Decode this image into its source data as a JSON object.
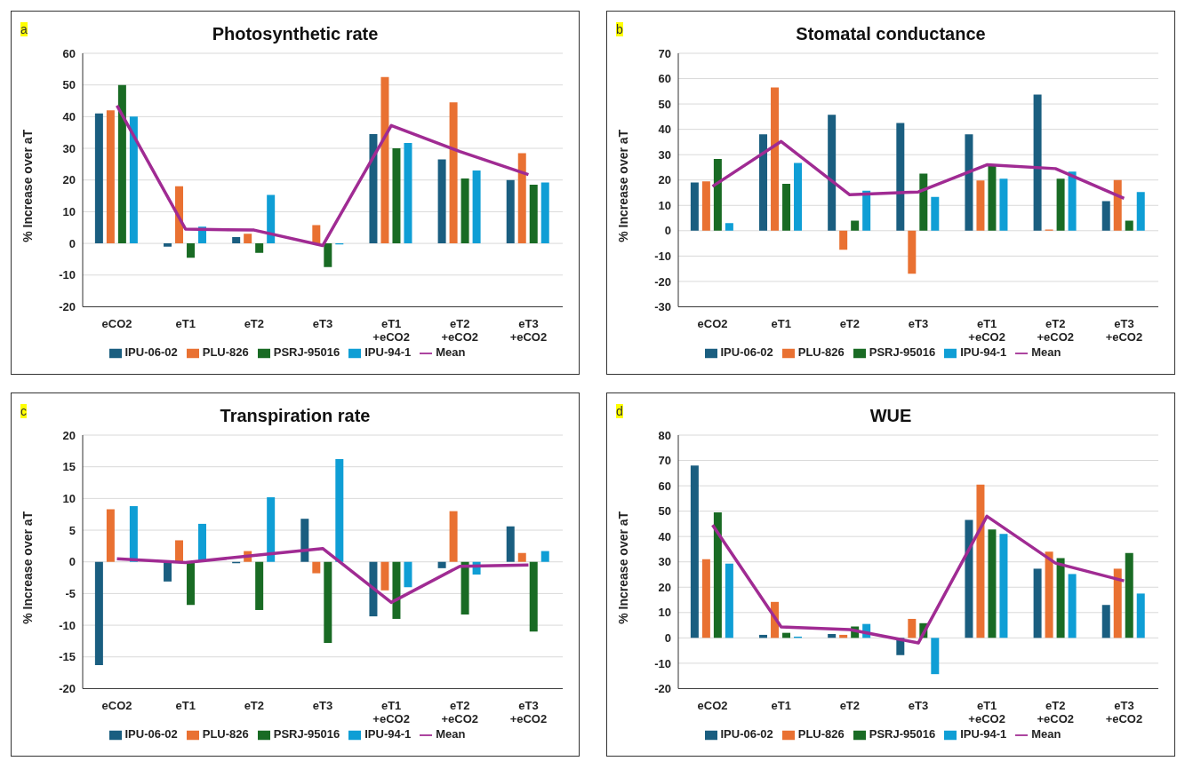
{
  "chart_data": [
    {
      "type": "bar",
      "title": "Photosynthetic rate",
      "ylabel": "% Increase over aT",
      "annotations": [
        "a"
      ],
      "categories": [
        "eCO2",
        "eT1",
        "eT2",
        "eT3",
        "eT1 +eCO2",
        "eT2 +eCO2",
        "eT3 +eCO2"
      ],
      "series": [
        {
          "name": "IPU-06-02",
          "color": "#1a5e80",
          "values": [
            41,
            -1,
            2,
            0,
            34.5,
            26.5,
            20
          ]
        },
        {
          "name": "PLU-826",
          "color": "#e97132",
          "values": [
            42,
            18,
            3,
            5.8,
            52.5,
            44.5,
            28.5
          ]
        },
        {
          "name": "PSRJ-95016",
          "color": "#196b24",
          "values": [
            50,
            -4.5,
            -3,
            -7.5,
            30,
            20.5,
            18.5
          ]
        },
        {
          "name": "IPU-94-1",
          "color": "#0f9ed5",
          "values": [
            40,
            5.3,
            15.3,
            -0.3,
            31.7,
            23,
            19.2
          ]
        },
        {
          "name": "Mean",
          "type": "line",
          "color": "#a02b93",
          "values": [
            43.5,
            4.5,
            4.2,
            -0.7,
            37.2,
            29,
            21.7
          ]
        }
      ],
      "ylim": [
        -20,
        60
      ],
      "yticks": [
        -20,
        -10,
        0,
        10,
        20,
        30,
        40,
        50,
        60
      ],
      "grid": "y",
      "legend": "bottom",
      "marker": "none"
    },
    {
      "type": "bar",
      "title": "Stomatal conductance",
      "ylabel": "% Increase over aT",
      "annotations": [
        "b"
      ],
      "categories": [
        "eCO2",
        "eT1",
        "eT2",
        "eT3",
        "eT1 +eCO2",
        "eT2 +eCO2",
        "eT3 +eCO2"
      ],
      "series": [
        {
          "name": "IPU-06-02",
          "color": "#1a5e80",
          "values": [
            19,
            38,
            45.7,
            42.5,
            38,
            53.7,
            11.7
          ]
        },
        {
          "name": "PLU-826",
          "color": "#e97132",
          "values": [
            19.5,
            56.5,
            -7.5,
            -17,
            19.8,
            0.5,
            20
          ]
        },
        {
          "name": "PSRJ-95016",
          "color": "#196b24",
          "values": [
            28.3,
            18.5,
            4,
            22.5,
            25.5,
            20.5,
            4
          ]
        },
        {
          "name": "IPU-94-1",
          "color": "#0f9ed5",
          "values": [
            3,
            26.7,
            15.8,
            13.3,
            20.5,
            23.3,
            15.3
          ]
        },
        {
          "name": "Mean",
          "type": "line",
          "color": "#a02b93",
          "values": [
            17.5,
            35.2,
            14.2,
            15.3,
            26,
            24.5,
            12.8
          ]
        }
      ],
      "ylim": [
        -30,
        70
      ],
      "yticks": [
        -30,
        -20,
        -10,
        0,
        10,
        20,
        30,
        40,
        50,
        60,
        70
      ],
      "grid": "y",
      "legend": "bottom",
      "marker": "none"
    },
    {
      "type": "bar",
      "title": "Transpiration rate",
      "ylabel": "% Increase over aT",
      "annotations": [
        "c"
      ],
      "categories": [
        "eCO2",
        "eT1",
        "eT2",
        "eT3",
        "eT1 +eCO2",
        "eT2 +eCO2",
        "eT3 +eCO2"
      ],
      "series": [
        {
          "name": "IPU-06-02",
          "color": "#1a5e80",
          "values": [
            -16.3,
            -3.1,
            -0.2,
            6.8,
            -8.6,
            -1,
            5.6
          ]
        },
        {
          "name": "PLU-826",
          "color": "#e97132",
          "values": [
            8.3,
            3.4,
            1.7,
            -1.8,
            -4.5,
            8,
            1.4
          ]
        },
        {
          "name": "PSRJ-95016",
          "color": "#196b24",
          "values": [
            null,
            -6.8,
            -7.6,
            -12.8,
            -9,
            -8.3,
            -11
          ]
        },
        {
          "name": "IPU-94-1",
          "color": "#0f9ed5",
          "values": [
            8.8,
            6,
            10.2,
            16.2,
            -4,
            -2,
            1.7
          ]
        },
        {
          "name": "Mean",
          "type": "line",
          "color": "#a02b93",
          "values": [
            0.5,
            -0.1,
            1,
            2.1,
            -6.4,
            -0.7,
            -0.5
          ]
        }
      ],
      "ylim": [
        -20,
        20
      ],
      "yticks": [
        -20,
        -15,
        -10,
        -5,
        0,
        5,
        10,
        15,
        20
      ],
      "grid": "y",
      "legend": "bottom",
      "marker": "none"
    },
    {
      "type": "bar",
      "title": "WUE",
      "ylabel": "% Increase over aT",
      "annotations": [
        "d"
      ],
      "categories": [
        "eCO2",
        "eT1",
        "eT2",
        "eT3",
        "eT1 +eCO2",
        "eT2 +eCO2",
        "eT3 +eCO2"
      ],
      "series": [
        {
          "name": "IPU-06-02",
          "color": "#1a5e80",
          "values": [
            68,
            1.2,
            1.5,
            -6.8,
            46.5,
            27.3,
            13
          ]
        },
        {
          "name": "PLU-826",
          "color": "#e97132",
          "values": [
            31,
            14.2,
            1.2,
            7.5,
            60.5,
            34,
            27.3
          ]
        },
        {
          "name": "PSRJ-95016",
          "color": "#196b24",
          "values": [
            49.5,
            2,
            4.5,
            5.8,
            42.8,
            31.5,
            33.5
          ]
        },
        {
          "name": "IPU-94-1",
          "color": "#0f9ed5",
          "values": [
            29.3,
            0.5,
            5.5,
            -14.3,
            41,
            25.2,
            17.5
          ]
        },
        {
          "name": "Mean",
          "type": "line",
          "color": "#a02b93",
          "values": [
            44.5,
            4.3,
            3.3,
            -2,
            48,
            29.5,
            22.5
          ]
        }
      ],
      "ylim": [
        -20,
        80
      ],
      "yticks": [
        -20,
        -10,
        0,
        10,
        20,
        30,
        40,
        50,
        60,
        70,
        80
      ],
      "grid": "y",
      "legend": "bottom",
      "marker": "none"
    }
  ]
}
